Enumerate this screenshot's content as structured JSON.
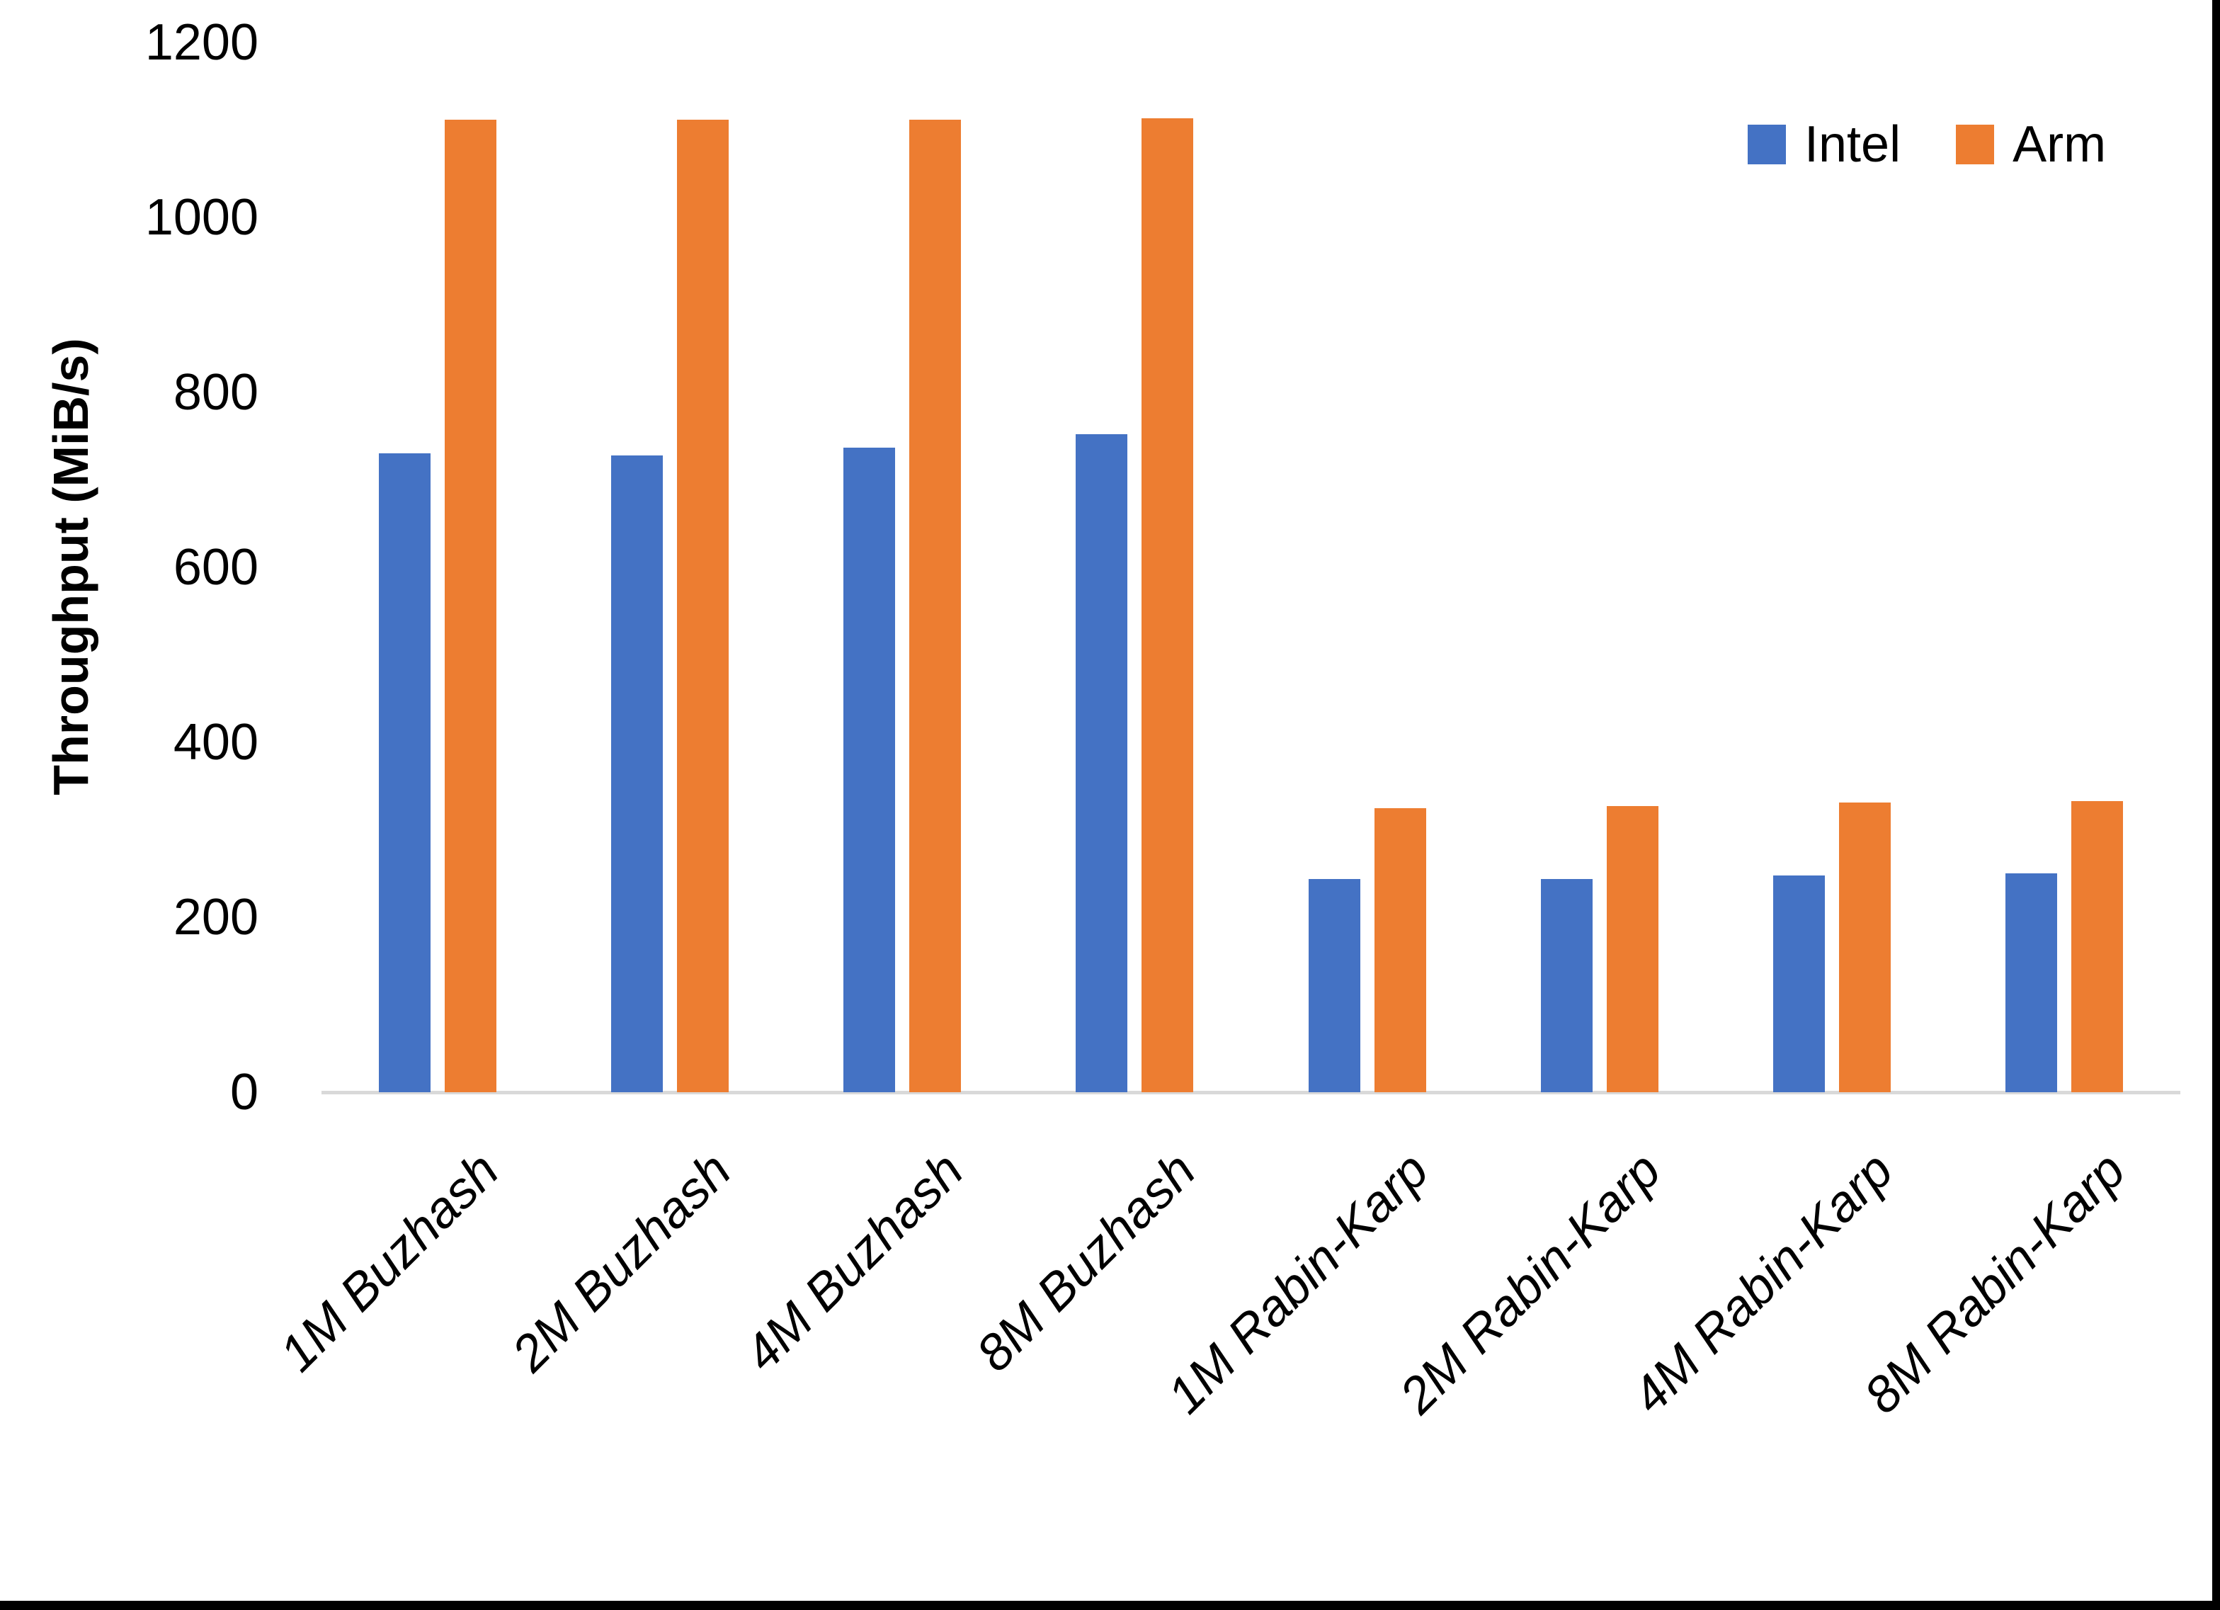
{
  "figure": {
    "y_axis_title": "Throughput (MiB/s)",
    "background_color": "#ffffff",
    "axis_line_color": "#d9d9d9",
    "text_color": "#000000",
    "border_color": "#000000"
  },
  "legend": {
    "position": "top-right",
    "items": [
      {
        "label": "Intel",
        "color": "#4472c4"
      },
      {
        "label": "Arm",
        "color": "#ed7d31"
      }
    ]
  },
  "chart_data": {
    "type": "bar",
    "title": "",
    "xlabel": "",
    "ylabel": "Throughput (MiB/s)",
    "categories": [
      "1M Buzhash",
      "2M Buzhash",
      "4M Buzhash",
      "8M Buzhash",
      "1M Rabin-Karp",
      "2M Rabin-Karp",
      "4M Rabin-Karp",
      "8M Rabin-Karp"
    ],
    "series": [
      {
        "name": "Intel",
        "color": "#4472c4",
        "values": [
          730,
          728,
          737,
          752,
          244,
          244,
          248,
          250
        ]
      },
      {
        "name": "Arm",
        "color": "#ed7d31",
        "values": [
          1112,
          1112,
          1112,
          1113,
          325,
          327,
          331,
          333
        ]
      }
    ],
    "ylim": [
      0,
      1200
    ],
    "yticks": [
      0,
      200,
      400,
      600,
      800,
      1000,
      1200
    ],
    "grid": false,
    "legend_position": "top-right"
  }
}
